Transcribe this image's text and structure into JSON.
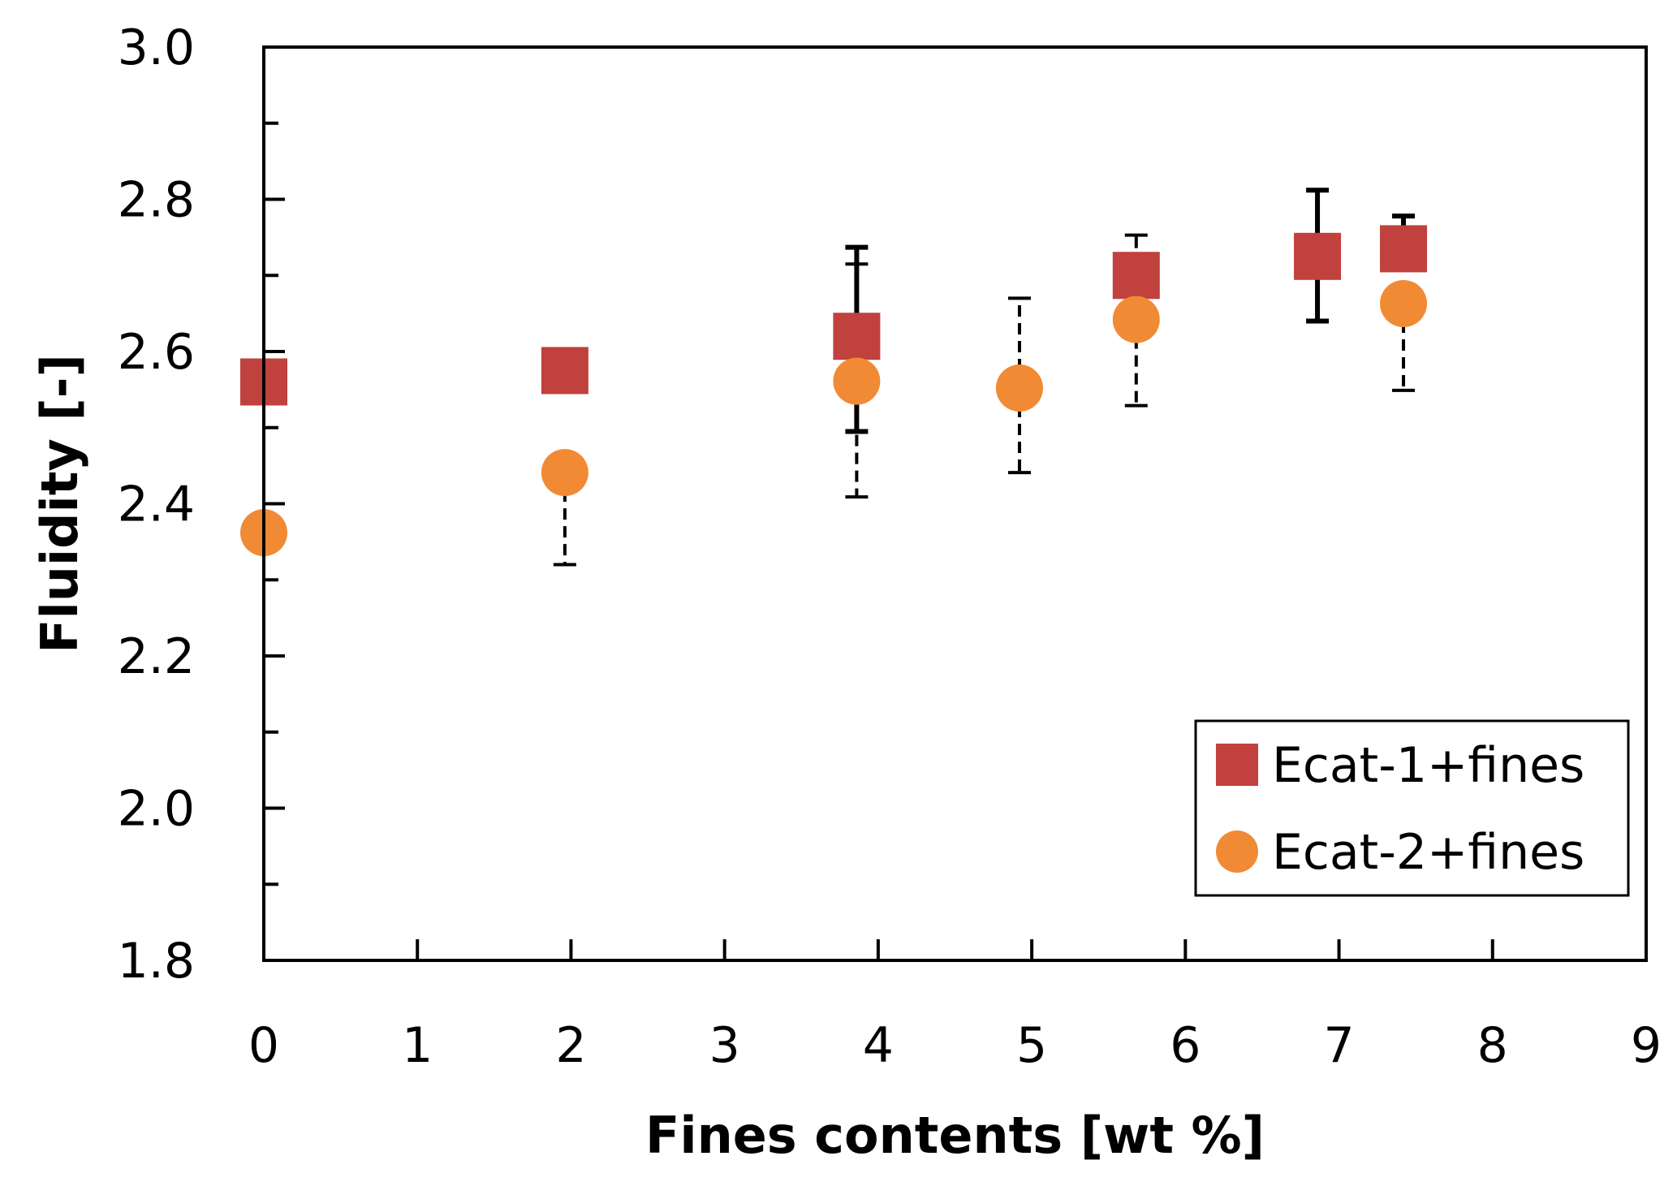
{
  "chart_data": {
    "type": "scatter",
    "title": "",
    "xlabel": "Fines contents [wt %]",
    "ylabel": "Fluidity [-]",
    "xlim": [
      0,
      9
    ],
    "ylim": [
      1.8,
      3.0
    ],
    "xticks": [
      0,
      1,
      2,
      3,
      4,
      5,
      6,
      7,
      8,
      9
    ],
    "xtick_labels": [
      "0",
      "1",
      "2",
      "3",
      "4",
      "5",
      "6",
      "7",
      "8",
      "9"
    ],
    "yticks": [
      1.8,
      2.0,
      2.2,
      2.4,
      2.6,
      2.8,
      3.0
    ],
    "ytick_labels": [
      "1.8",
      "2.0",
      "2.2",
      "2.4",
      "2.6",
      "2.8",
      "3.0"
    ],
    "grid": false,
    "legend_position": "bottom-right",
    "series": [
      {
        "name": "Ecat-1+fines",
        "marker": "square",
        "color": "#c0413e",
        "errorbar_style": "solid",
        "points": [
          {
            "x": 0.0,
            "y": 2.56,
            "err_low": null,
            "err_high": null
          },
          {
            "x": 1.96,
            "y": 2.575,
            "err_low": null,
            "err_high": null
          },
          {
            "x": 3.86,
            "y": 2.62,
            "err_low": 2.495,
            "err_high": 2.737
          },
          {
            "x": 5.68,
            "y": 2.7,
            "err_low": null,
            "err_high": null
          },
          {
            "x": 6.86,
            "y": 2.725,
            "err_low": 2.64,
            "err_high": 2.812
          },
          {
            "x": 7.42,
            "y": 2.735,
            "err_low": null,
            "err_high": 2.778
          }
        ]
      },
      {
        "name": "Ecat-2+fines",
        "marker": "circle",
        "color": "#f18a35",
        "errorbar_style": "dashed",
        "points": [
          {
            "x": 0.0,
            "y": 2.362,
            "err_low": null,
            "err_high": null
          },
          {
            "x": 1.96,
            "y": 2.441,
            "err_low": 2.32,
            "err_high": null
          },
          {
            "x": 3.86,
            "y": 2.561,
            "err_low": 2.409,
            "err_high": 2.715
          },
          {
            "x": 4.92,
            "y": 2.552,
            "err_low": 2.441,
            "err_high": 2.67
          },
          {
            "x": 5.68,
            "y": 2.642,
            "err_low": 2.529,
            "err_high": 2.753
          },
          {
            "x": 7.42,
            "y": 2.663,
            "err_low": 2.549,
            "err_high": null
          }
        ]
      }
    ]
  }
}
